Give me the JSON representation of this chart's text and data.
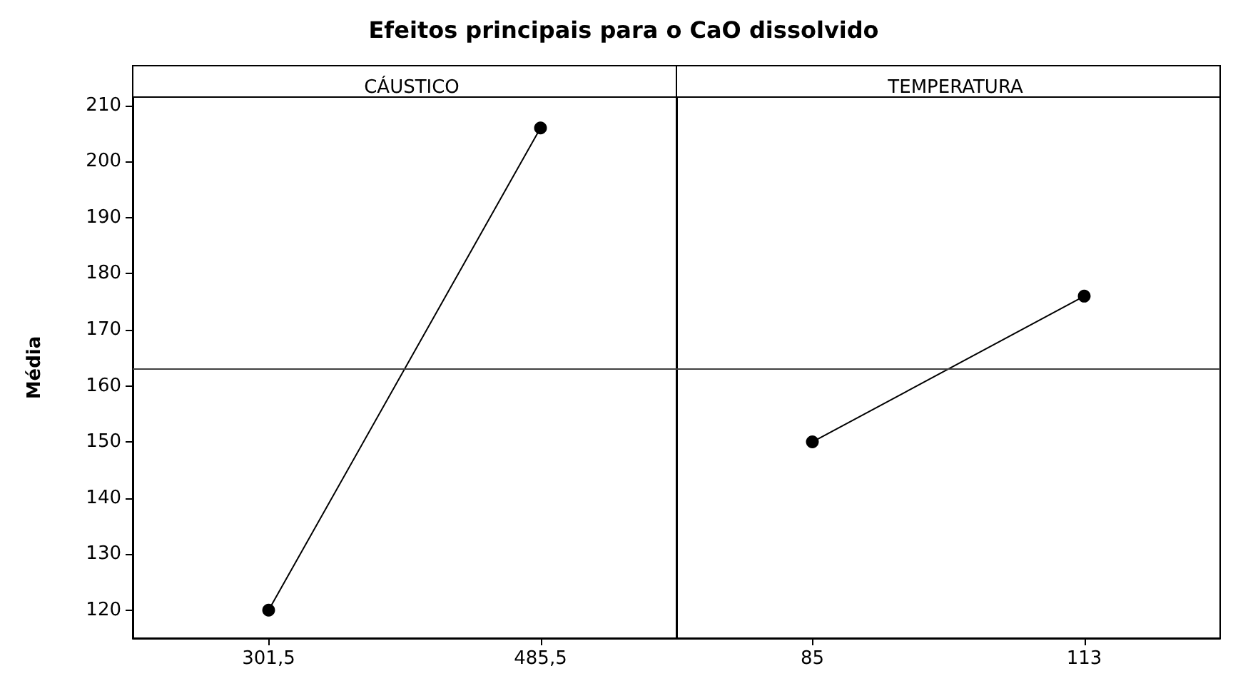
{
  "chart_data": [
    {
      "type": "line",
      "title": "Efeitos principais para o CaO dissolvido",
      "subtitle": "CÁUSTICO",
      "ylabel": "Média",
      "categories": [
        "301,5",
        "485,5"
      ],
      "series": [
        {
          "color": "#000000",
          "values": [
            120,
            206
          ]
        }
      ],
      "ylim": [
        115,
        211.5
      ],
      "yticks": [
        120,
        130,
        140,
        150,
        160,
        170,
        180,
        190,
        200,
        210
      ],
      "ref_lines": [
        {
          "axis": "y",
          "value": 163,
          "color": "#404040"
        }
      ],
      "marker": "circle",
      "line_style": "solid",
      "grid": false
    },
    {
      "type": "line",
      "subtitle": "TEMPERATURA",
      "categories": [
        "85",
        "113"
      ],
      "series": [
        {
          "color": "#000000",
          "values": [
            150,
            176
          ]
        }
      ],
      "ylim": [
        115,
        211.5
      ],
      "yticks": [
        120,
        130,
        140,
        150,
        160,
        170,
        180,
        190,
        200,
        210
      ],
      "ref_lines": [
        {
          "axis": "y",
          "value": 163,
          "color": "#404040"
        }
      ],
      "marker": "circle",
      "line_style": "solid",
      "grid": false,
      "tick_labels": "x"
    }
  ]
}
